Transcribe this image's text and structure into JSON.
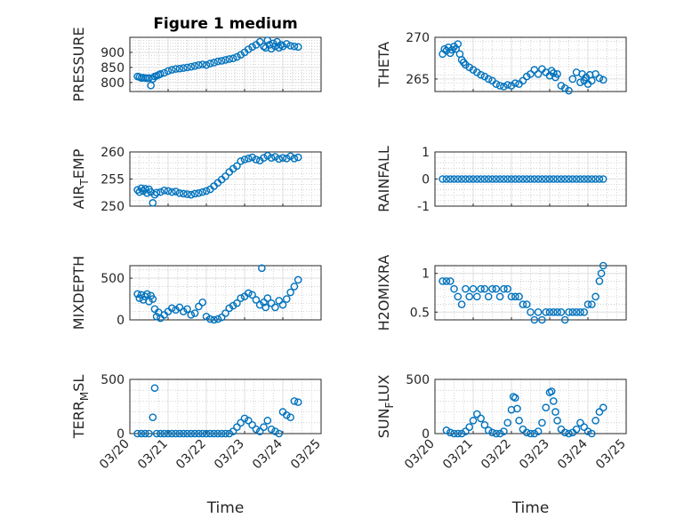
{
  "marker_color": "#0072BD",
  "chart_data": [
    {
      "type": "scatter",
      "title": "Figure 1 medium",
      "ylabel": "PRESSURE",
      "xlim": [
        "03/20",
        "03/25"
      ],
      "ylim": [
        770,
        950
      ],
      "yticks": [
        800,
        850,
        900
      ],
      "yticklabels": [
        "800",
        "850",
        "900"
      ],
      "xticklabels": [],
      "xlabel": "",
      "grid": true,
      "x": [
        0.2,
        0.25,
        0.3,
        0.35,
        0.4,
        0.45,
        0.5,
        0.55,
        0.6,
        0.65,
        0.7,
        0.75,
        0.8,
        0.9,
        1.0,
        1.1,
        1.2,
        1.3,
        1.4,
        1.5,
        1.6,
        1.7,
        1.8,
        1.9,
        2.0,
        2.1,
        2.2,
        2.3,
        2.4,
        2.5,
        2.6,
        2.7,
        2.8,
        2.9,
        3.0,
        3.1,
        3.2,
        3.3,
        3.4,
        3.5,
        3.55,
        3.6,
        3.65,
        3.7,
        3.75,
        3.8,
        3.85,
        3.9,
        3.95,
        4.0,
        4.1,
        4.2,
        4.3,
        4.4
      ],
      "y": [
        820,
        818,
        815,
        816,
        815,
        814,
        815,
        790,
        812,
        820,
        822,
        825,
        828,
        832,
        838,
        842,
        845,
        846,
        848,
        850,
        852,
        855,
        858,
        860,
        858,
        863,
        866,
        870,
        872,
        875,
        878,
        880,
        885,
        892,
        900,
        910,
        918,
        925,
        935,
        920,
        915,
        940,
        925,
        912,
        930,
        920,
        935,
        915,
        925,
        920,
        928,
        922,
        920,
        918
      ]
    },
    {
      "type": "scatter",
      "title": "",
      "ylabel": "THETA",
      "xlim": [
        "03/20",
        "03/25"
      ],
      "ylim": [
        263.5,
        270
      ],
      "yticks": [
        265,
        270
      ],
      "yticklabels": [
        "265",
        "270"
      ],
      "xticklabels": [],
      "xlabel": "",
      "grid": true,
      "x": [
        0.2,
        0.25,
        0.3,
        0.35,
        0.4,
        0.45,
        0.5,
        0.55,
        0.6,
        0.65,
        0.7,
        0.75,
        0.8,
        0.9,
        1.0,
        1.1,
        1.2,
        1.3,
        1.4,
        1.5,
        1.6,
        1.7,
        1.8,
        1.9,
        2.0,
        2.1,
        2.2,
        2.3,
        2.4,
        2.5,
        2.6,
        2.7,
        2.8,
        2.9,
        3.0,
        3.05,
        3.1,
        3.15,
        3.2,
        3.3,
        3.4,
        3.5,
        3.6,
        3.7,
        3.8,
        3.85,
        3.9,
        3.95,
        4.0,
        4.05,
        4.1,
        4.2,
        4.3,
        4.4
      ],
      "y": [
        268,
        268.6,
        268.4,
        268.8,
        268.1,
        268.5,
        268.9,
        268.6,
        269.2,
        268,
        267.3,
        267,
        266.7,
        266.4,
        266.1,
        265.8,
        265.5,
        265.3,
        265,
        264.8,
        264.4,
        264.2,
        264.1,
        264.3,
        264.2,
        264.5,
        264.4,
        264.8,
        265.3,
        265.6,
        266.1,
        265.6,
        266.2,
        265.8,
        265.4,
        266,
        265.7,
        265.2,
        265.6,
        264.2,
        263.9,
        263.6,
        265,
        265.8,
        264.6,
        265.6,
        264.8,
        265.2,
        264.4,
        265.5,
        264.8,
        265.6,
        265.1,
        264.9
      ]
    },
    {
      "type": "scatter",
      "title": "",
      "ylabel": "AIR_TEMP",
      "xlim": [
        "03/20",
        "03/25"
      ],
      "ylim": [
        250,
        260
      ],
      "yticks": [
        250,
        255,
        260
      ],
      "yticklabels": [
        "250",
        "255",
        "260"
      ],
      "xticklabels": [],
      "xlabel": "",
      "grid": true,
      "x": [
        0.2,
        0.25,
        0.3,
        0.35,
        0.4,
        0.45,
        0.5,
        0.55,
        0.6,
        0.65,
        0.7,
        0.8,
        0.9,
        1.0,
        1.1,
        1.2,
        1.3,
        1.4,
        1.5,
        1.6,
        1.7,
        1.8,
        1.9,
        2.0,
        2.1,
        2.2,
        2.3,
        2.4,
        2.5,
        2.6,
        2.7,
        2.8,
        2.9,
        3.0,
        3.1,
        3.2,
        3.3,
        3.4,
        3.5,
        3.6,
        3.7,
        3.8,
        3.9,
        4.0,
        4.1,
        4.2,
        4.3,
        4.4
      ],
      "y": [
        253,
        252.6,
        253.3,
        252.8,
        253.2,
        252.4,
        253.1,
        252.6,
        250.6,
        252.1,
        252.5,
        252.6,
        252.9,
        252.8,
        252.6,
        252.7,
        252.4,
        252.3,
        252.2,
        252.1,
        252.3,
        252.4,
        252.6,
        252.8,
        253.1,
        253.7,
        254.3,
        254.9,
        255.5,
        256.3,
        256.9,
        257.4,
        258.3,
        258.6,
        258.8,
        259,
        258.6,
        258.4,
        258.9,
        259.3,
        258.9,
        259.1,
        258.7,
        258.9,
        258.8,
        259.2,
        258.8,
        259
      ]
    },
    {
      "type": "scatter",
      "title": "",
      "ylabel": "RAINFALL",
      "xlim": [
        "03/20",
        "03/25"
      ],
      "ylim": [
        -1,
        1
      ],
      "yticks": [
        -1,
        0,
        1
      ],
      "yticklabels": [
        "-1",
        "0",
        "1"
      ],
      "xticklabels": [],
      "xlabel": "",
      "grid": true,
      "x": [
        0.2,
        0.3,
        0.4,
        0.5,
        0.6,
        0.7,
        0.8,
        0.9,
        1.0,
        1.1,
        1.2,
        1.3,
        1.4,
        1.5,
        1.6,
        1.7,
        1.8,
        1.9,
        2.0,
        2.1,
        2.2,
        2.3,
        2.4,
        2.5,
        2.6,
        2.7,
        2.8,
        2.9,
        3.0,
        3.1,
        3.2,
        3.3,
        3.4,
        3.5,
        3.6,
        3.7,
        3.8,
        3.9,
        4.0,
        4.1,
        4.2,
        4.3,
        4.4
      ],
      "y": [
        0,
        0,
        0,
        0,
        0,
        0,
        0,
        0,
        0,
        0,
        0,
        0,
        0,
        0,
        0,
        0,
        0,
        0,
        0,
        0,
        0,
        0,
        0,
        0,
        0,
        0,
        0,
        0,
        0,
        0,
        0,
        0,
        0,
        0,
        0,
        0,
        0,
        0,
        0,
        0,
        0,
        0,
        0
      ]
    },
    {
      "type": "scatter",
      "title": "",
      "ylabel": "MIXDEPTH",
      "xlim": [
        "03/20",
        "03/25"
      ],
      "ylim": [
        0,
        650
      ],
      "yticks": [
        0,
        500
      ],
      "yticklabels": [
        "0",
        "500"
      ],
      "xticklabels": [],
      "xlabel": "",
      "grid": true,
      "x": [
        0.2,
        0.25,
        0.3,
        0.35,
        0.4,
        0.45,
        0.5,
        0.55,
        0.6,
        0.65,
        0.7,
        0.75,
        0.8,
        0.9,
        1.0,
        1.1,
        1.2,
        1.3,
        1.4,
        1.5,
        1.6,
        1.7,
        1.8,
        1.9,
        2.0,
        2.1,
        2.2,
        2.3,
        2.4,
        2.5,
        2.6,
        2.7,
        2.8,
        2.9,
        3.0,
        3.1,
        3.2,
        3.3,
        3.4,
        3.45,
        3.5,
        3.55,
        3.6,
        3.7,
        3.8,
        3.9,
        4.0,
        4.1,
        4.2,
        4.3,
        4.4
      ],
      "y": [
        310,
        260,
        300,
        240,
        280,
        310,
        220,
        290,
        250,
        130,
        40,
        90,
        20,
        60,
        100,
        140,
        120,
        150,
        100,
        130,
        60,
        80,
        160,
        210,
        40,
        10,
        0,
        10,
        30,
        80,
        140,
        170,
        200,
        260,
        280,
        320,
        300,
        240,
        180,
        620,
        210,
        150,
        260,
        200,
        150,
        230,
        180,
        250,
        330,
        400,
        480
      ]
    },
    {
      "type": "scatter",
      "title": "",
      "ylabel": "H2OMIXRA",
      "xlim": [
        "03/20",
        "03/25"
      ],
      "ylim": [
        0.4,
        1.1
      ],
      "yticks": [
        0.5,
        1
      ],
      "yticklabels": [
        "0.5",
        "1"
      ],
      "xticklabels": [],
      "xlabel": "",
      "grid": true,
      "x": [
        0.2,
        0.3,
        0.4,
        0.5,
        0.6,
        0.7,
        0.8,
        0.9,
        1.0,
        1.1,
        1.2,
        1.3,
        1.4,
        1.5,
        1.6,
        1.7,
        1.8,
        1.9,
        2.0,
        2.1,
        2.2,
        2.3,
        2.4,
        2.5,
        2.6,
        2.7,
        2.8,
        2.9,
        3.0,
        3.1,
        3.2,
        3.3,
        3.4,
        3.5,
        3.6,
        3.7,
        3.8,
        3.9,
        4.0,
        4.1,
        4.2,
        4.3,
        4.35,
        4.4
      ],
      "y": [
        0.9,
        0.9,
        0.9,
        0.8,
        0.7,
        0.6,
        0.8,
        0.7,
        0.8,
        0.7,
        0.8,
        0.8,
        0.7,
        0.8,
        0.8,
        0.7,
        0.8,
        0.8,
        0.7,
        0.7,
        0.7,
        0.6,
        0.6,
        0.5,
        0.4,
        0.5,
        0.4,
        0.5,
        0.5,
        0.5,
        0.5,
        0.5,
        0.4,
        0.5,
        0.5,
        0.5,
        0.5,
        0.5,
        0.6,
        0.6,
        0.7,
        0.9,
        1.0,
        1.1
      ]
    },
    {
      "type": "scatter",
      "title": "",
      "ylabel": "TERR_MSL",
      "xlim": [
        "03/20",
        "03/25"
      ],
      "ylim": [
        0,
        500
      ],
      "yticks": [
        0,
        500
      ],
      "yticklabels": [
        "0",
        "500"
      ],
      "xticklabels": [
        "03/20",
        "03/21",
        "03/22",
        "03/23",
        "03/24",
        "03/25"
      ],
      "xlabel": "Time",
      "grid": true,
      "x": [
        0.2,
        0.3,
        0.4,
        0.5,
        0.6,
        0.65,
        0.7,
        0.8,
        0.9,
        1.0,
        1.1,
        1.2,
        1.3,
        1.4,
        1.5,
        1.6,
        1.7,
        1.8,
        1.9,
        2.0,
        2.1,
        2.2,
        2.3,
        2.4,
        2.5,
        2.6,
        2.7,
        2.8,
        2.9,
        3.0,
        3.1,
        3.2,
        3.3,
        3.4,
        3.5,
        3.6,
        3.7,
        3.8,
        3.9,
        4.0,
        4.1,
        4.2,
        4.3,
        4.4
      ],
      "y": [
        0,
        0,
        0,
        0,
        150,
        420,
        0,
        0,
        0,
        0,
        0,
        0,
        0,
        0,
        0,
        0,
        0,
        0,
        0,
        0,
        0,
        0,
        0,
        0,
        0,
        0,
        20,
        60,
        100,
        140,
        120,
        80,
        40,
        20,
        60,
        120,
        40,
        20,
        0,
        200,
        170,
        150,
        300,
        290
      ]
    },
    {
      "type": "scatter",
      "title": "",
      "ylabel": "SUN_FLUX",
      "xlim": [
        "03/20",
        "03/25"
      ],
      "ylim": [
        0,
        500
      ],
      "yticks": [
        0,
        500
      ],
      "yticklabels": [
        "0",
        "500"
      ],
      "xticklabels": [
        "03/20",
        "03/21",
        "03/22",
        "03/23",
        "03/24",
        "03/25"
      ],
      "xlabel": "Time",
      "grid": true,
      "x": [
        0.3,
        0.4,
        0.5,
        0.6,
        0.7,
        0.8,
        0.9,
        1.0,
        1.1,
        1.2,
        1.3,
        1.4,
        1.5,
        1.6,
        1.7,
        1.8,
        1.9,
        2.0,
        2.05,
        2.1,
        2.15,
        2.2,
        2.3,
        2.4,
        2.5,
        2.6,
        2.7,
        2.8,
        2.9,
        3.0,
        3.05,
        3.1,
        3.15,
        3.2,
        3.3,
        3.4,
        3.5,
        3.6,
        3.7,
        3.8,
        3.9,
        4.0,
        4.1,
        4.2,
        4.3,
        4.4
      ],
      "y": [
        30,
        10,
        0,
        0,
        0,
        20,
        60,
        120,
        180,
        140,
        80,
        30,
        10,
        0,
        0,
        20,
        100,
        220,
        340,
        330,
        230,
        120,
        40,
        10,
        0,
        0,
        20,
        100,
        240,
        380,
        390,
        300,
        200,
        120,
        40,
        10,
        0,
        10,
        40,
        100,
        60,
        20,
        0,
        120,
        200,
        240
      ]
    }
  ]
}
